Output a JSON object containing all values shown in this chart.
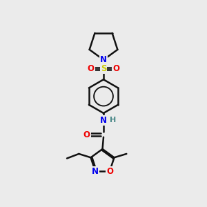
{
  "background_color": "#ebebeb",
  "atom_colors": {
    "C": "#000000",
    "N": "#0000ee",
    "O": "#ee0000",
    "S": "#cccc00",
    "H": "#4a8888"
  },
  "bond_color": "#111111",
  "bond_width": 1.8,
  "figsize": [
    3.0,
    3.0
  ],
  "dpi": 100
}
